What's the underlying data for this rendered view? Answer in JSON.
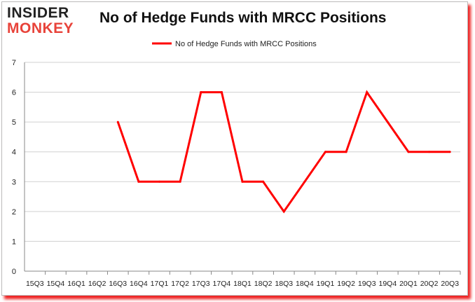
{
  "logo": {
    "line1": "INSIDER",
    "line2": "MONKEY"
  },
  "chart_data": {
    "type": "line",
    "title": "No of Hedge Funds with MRCC Positions",
    "xlabel": "",
    "ylabel": "",
    "categories": [
      "15Q3",
      "15Q4",
      "16Q1",
      "16Q2",
      "16Q3",
      "16Q4",
      "17Q1",
      "17Q2",
      "17Q3",
      "17Q4",
      "18Q1",
      "18Q2",
      "18Q3",
      "18Q4",
      "19Q1",
      "19Q2",
      "19Q3",
      "19Q4",
      "20Q1",
      "20Q2",
      "20Q3"
    ],
    "series": [
      {
        "name": "No of Hedge Funds with MRCC Positions",
        "color": "#ff0000",
        "values": [
          null,
          null,
          null,
          null,
          5,
          3,
          3,
          3,
          6,
          6,
          3,
          3,
          2,
          3,
          4,
          4,
          6,
          5,
          4,
          4,
          4
        ]
      }
    ],
    "ylim": [
      0,
      7
    ],
    "yticks": [
      0,
      1,
      2,
      3,
      4,
      5,
      6,
      7
    ],
    "grid": true,
    "legend": "top-center"
  }
}
